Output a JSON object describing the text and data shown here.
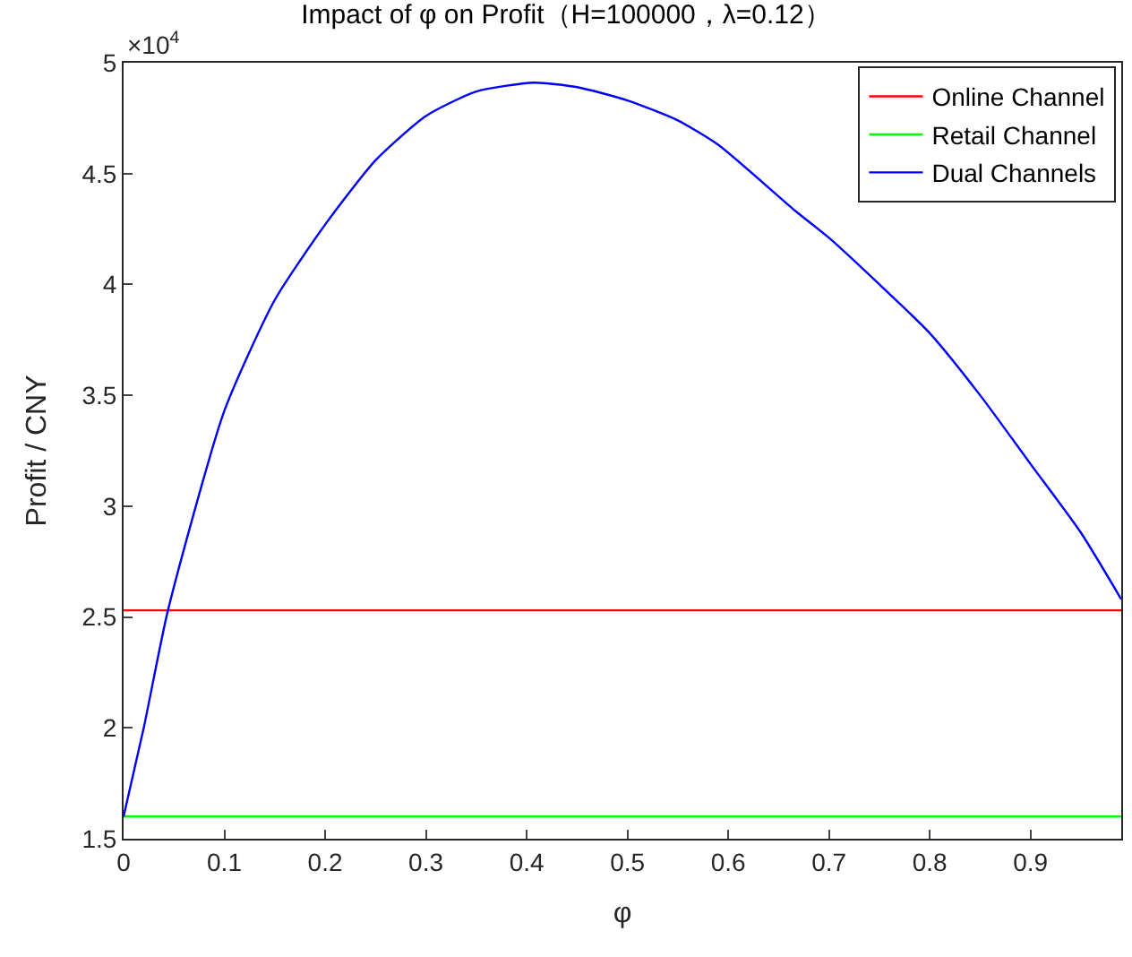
{
  "chart_data": {
    "type": "line",
    "title": "Impact of φ on Profit（H=100000，λ=0.12）",
    "xlabel": "φ",
    "ylabel": "Profit / CNY",
    "annotations": [
      "×10$^{4}$"
    ],
    "xlim": [
      0,
      0.99
    ],
    "xticks": [
      {
        "value": 0,
        "label": "0"
      },
      0.1,
      0.2,
      0.3,
      0.4,
      0.5,
      0.6,
      0.7,
      0.8,
      0.9
    ],
    "ylim": [
      1.5,
      5
    ],
    "yticks": [
      1.5,
      2,
      2.5,
      3,
      3.5,
      4,
      4.5,
      5
    ],
    "legend": "top right",
    "marker": "none",
    "line_style": "solid",
    "series": [
      {
        "name": "Online Channel",
        "color": "#ff0000",
        "x": [
          0,
          0.99
        ],
        "values": [
          2.53,
          2.53
        ]
      },
      {
        "name": "Retail Channel",
        "color": "#00ff00",
        "x": [
          0,
          0.99
        ],
        "values": [
          1.6,
          1.6
        ]
      },
      {
        "name": "Dual Channels",
        "color": "#0000ff",
        "x": [
          0,
          0.02,
          0.044,
          0.1,
          0.15,
          0.2,
          0.25,
          0.3,
          0.35,
          0.407,
          0.45,
          0.5,
          0.55,
          0.59,
          0.667,
          0.7,
          0.75,
          0.8,
          0.85,
          0.9,
          0.95,
          0.99
        ],
        "values": [
          1.6,
          2.0,
          2.53,
          3.43,
          3.93,
          4.27,
          4.56,
          4.76,
          4.87,
          4.91,
          4.89,
          4.83,
          4.74,
          4.63,
          4.33,
          4.21,
          4.0,
          3.78,
          3.5,
          3.19,
          2.88,
          2.58
        ]
      }
    ]
  }
}
